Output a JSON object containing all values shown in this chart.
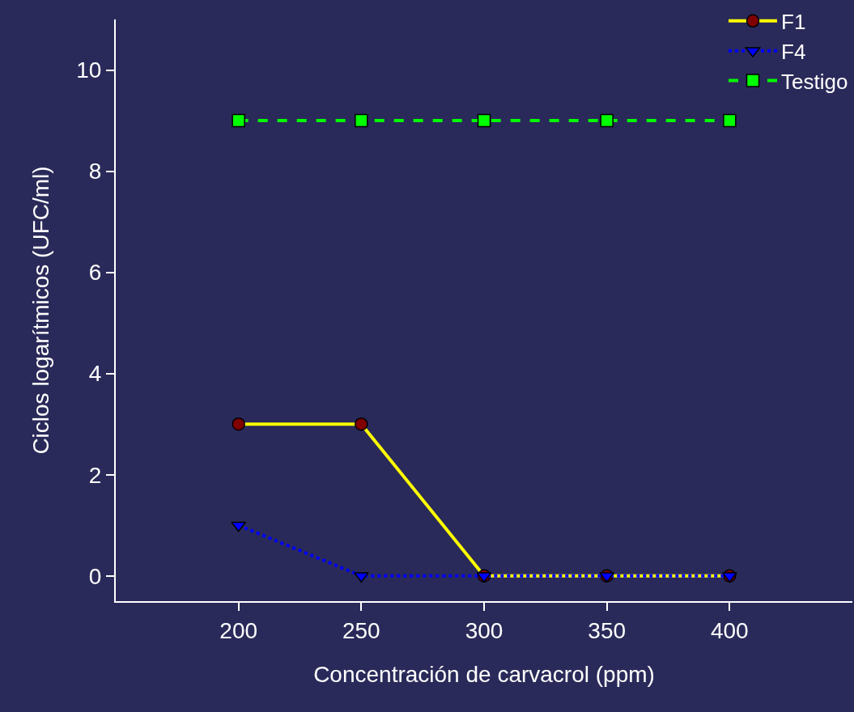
{
  "chart_data": {
    "type": "line",
    "xlabel": "Concentración de carvacrol (ppm)",
    "ylabel": "Ciclos logarítmicos (UFC/ml)",
    "x": [
      200,
      250,
      300,
      350,
      400
    ],
    "series": [
      {
        "name": "F1",
        "color": "#ffff00",
        "colors": [
          "#800000",
          "#800000",
          "#800000",
          "#800000",
          "#800000"
        ],
        "marker": "circle",
        "line_style": "solid",
        "values": [
          3,
          3,
          0,
          0,
          0
        ]
      },
      {
        "name": "F4",
        "color": "#0000ff",
        "marker": "triangle-down",
        "line_style": "dotted",
        "values": [
          1,
          0,
          0,
          0,
          0
        ]
      },
      {
        "name": "Testigo",
        "color": "#00ff00",
        "marker": "square",
        "line_style": "dashed",
        "values": [
          9,
          9,
          9,
          9,
          9
        ]
      }
    ],
    "xlim": [
      150,
      450
    ],
    "xticks": [
      200,
      250,
      300,
      350,
      400
    ],
    "ylim": [
      -0.5,
      11
    ],
    "yticks": [
      0,
      2,
      4,
      6,
      8,
      10
    ],
    "grid": false,
    "legend": "top right"
  }
}
